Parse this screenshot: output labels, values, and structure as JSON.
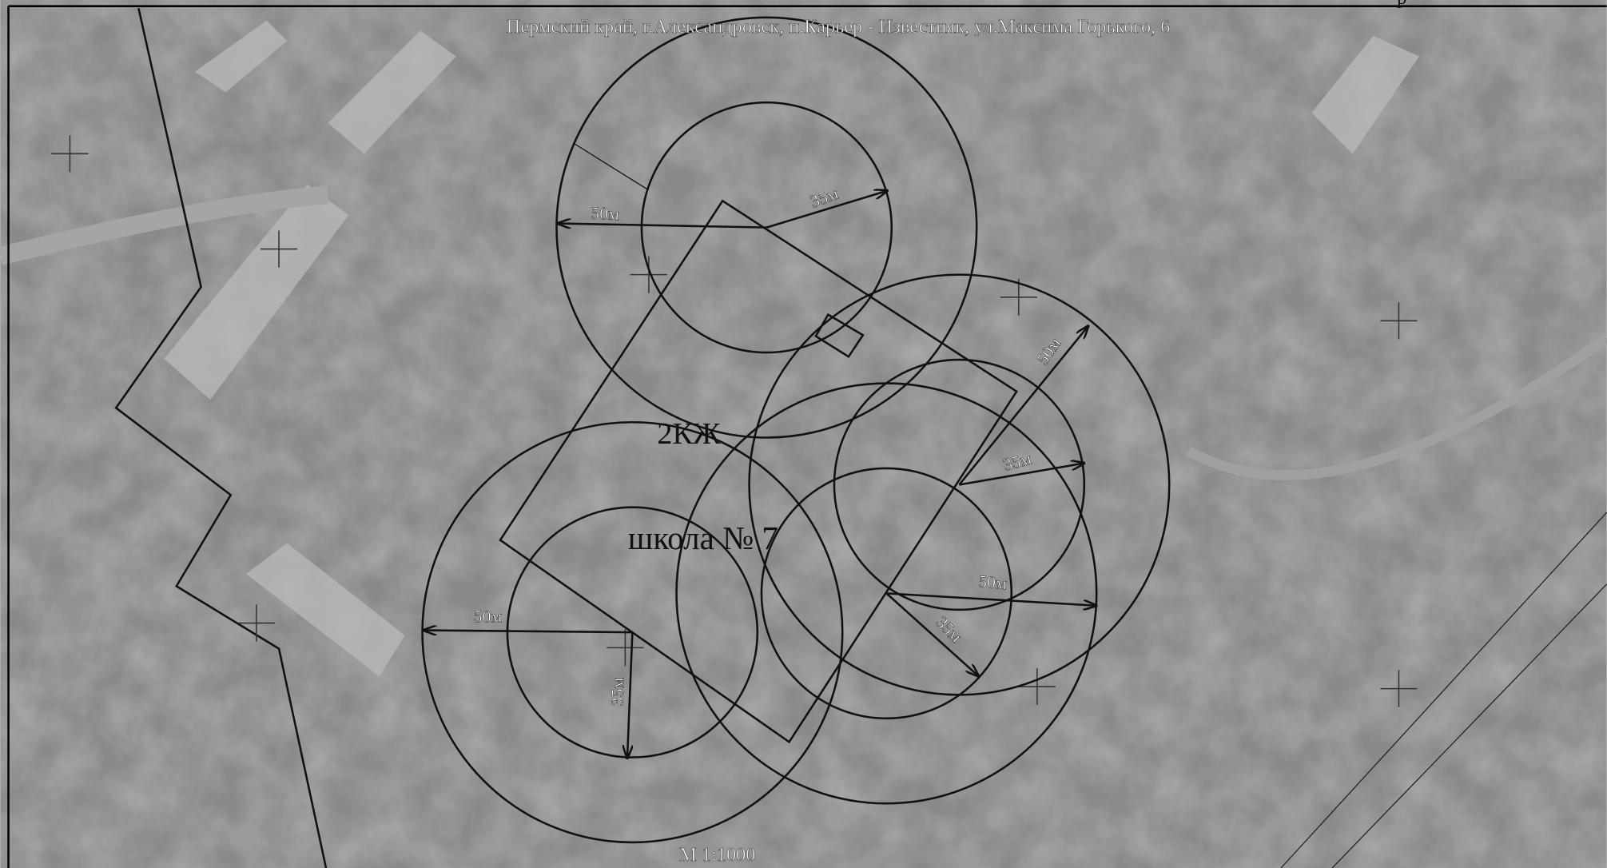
{
  "header": {
    "title": "Пермский край, г.Александровск, п.Карьер - Известняк, ул.Максима Горького, 6",
    "corner_text": "р"
  },
  "labels": {
    "zone": "2КЖ",
    "school": "школа № 7",
    "scale": "М 1:1000"
  },
  "radii": {
    "top_large": "50м",
    "top_small": "35м",
    "right_large": "50м",
    "right_small": "35м",
    "lower_large": "50м",
    "lower_small": "35м",
    "left_large": "50м",
    "left_small": "35м"
  }
}
